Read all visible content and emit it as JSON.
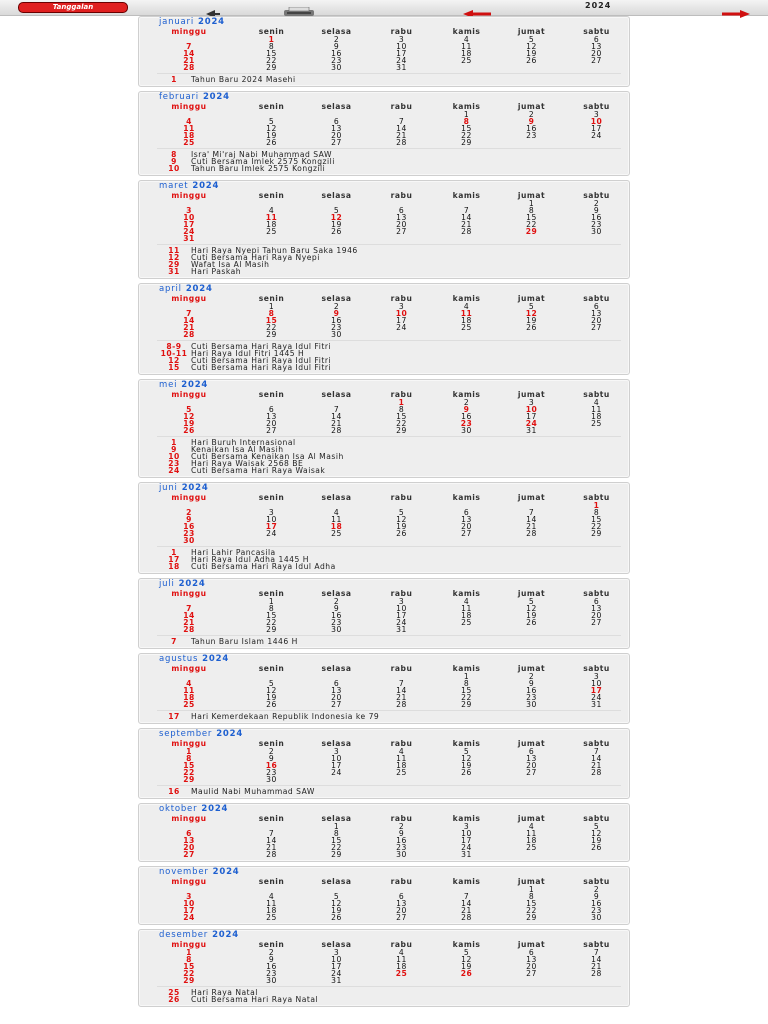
{
  "toolbar": {
    "logo_text": "Tanggalan",
    "year": "2024"
  },
  "calendar": {
    "year": "2024",
    "weekdays": [
      "minggu",
      "senin",
      "selasa",
      "rabu",
      "kamis",
      "jumat",
      "sabtu"
    ],
    "months": [
      {
        "name": "januari",
        "start": 1,
        "days": 31,
        "red": [
          1
        ],
        "holidays": [
          {
            "d": "1",
            "t": "Tahun Baru 2024 Masehi"
          }
        ]
      },
      {
        "name": "februari",
        "start": 4,
        "days": 29,
        "red": [
          8,
          9,
          10
        ],
        "holidays": [
          {
            "d": "8",
            "t": "Isra' Mi'raj Nabi Muhammad SAW"
          },
          {
            "d": "9",
            "t": "Cuti Bersama Imlek 2575 Kongzili"
          },
          {
            "d": "10",
            "t": "Tahun Baru Imlek 2575 Kongzili"
          }
        ]
      },
      {
        "name": "maret",
        "start": 5,
        "days": 31,
        "red": [
          11,
          12,
          29
        ],
        "holidays": [
          {
            "d": "11",
            "t": "Hari Raya Nyepi Tahun Baru Saka 1946"
          },
          {
            "d": "12",
            "t": "Cuti Bersama Hari Raya Nyepi"
          },
          {
            "d": "29",
            "t": "Wafat Isa Al Masih"
          },
          {
            "d": "31",
            "t": "Hari Paskah"
          }
        ]
      },
      {
        "name": "april",
        "start": 1,
        "days": 30,
        "red": [
          8,
          9,
          10,
          11,
          12,
          15
        ],
        "holidays": [
          {
            "d": "8-9",
            "t": "Cuti Bersama Hari Raya Idul Fitri"
          },
          {
            "d": "10-11",
            "t": "Hari Raya Idul Fitri 1445 H"
          },
          {
            "d": "12",
            "t": "Cuti Bersama Hari Raya Idul Fitri"
          },
          {
            "d": "15",
            "t": "Cuti Bersama Hari Raya Idul Fitri"
          }
        ]
      },
      {
        "name": "mei",
        "start": 3,
        "days": 31,
        "red": [
          1,
          9,
          10,
          23,
          24
        ],
        "holidays": [
          {
            "d": "1",
            "t": "Hari Buruh Internasional"
          },
          {
            "d": "9",
            "t": "Kenaikan Isa Al Masih"
          },
          {
            "d": "10",
            "t": "Cuti Bersama Kenaikan Isa Al Masih"
          },
          {
            "d": "23",
            "t": "Hari Raya Waisak 2568 BE"
          },
          {
            "d": "24",
            "t": "Cuti Bersama Hari Raya Waisak"
          }
        ]
      },
      {
        "name": "juni",
        "start": 6,
        "days": 30,
        "red": [
          1,
          17,
          18
        ],
        "holidays": [
          {
            "d": "1",
            "t": "Hari Lahir Pancasila"
          },
          {
            "d": "17",
            "t": "Hari Raya Idul Adha 1445 H"
          },
          {
            "d": "18",
            "t": "Cuti Bersama Hari Raya Idul Adha"
          }
        ]
      },
      {
        "name": "juli",
        "start": 1,
        "days": 31,
        "red": [
          7
        ],
        "holidays": [
          {
            "d": "7",
            "t": "Tahun Baru Islam 1446 H"
          }
        ]
      },
      {
        "name": "agustus",
        "start": 4,
        "days": 31,
        "red": [
          17
        ],
        "holidays": [
          {
            "d": "17",
            "t": "Hari Kemerdekaan Republik Indonesia ke 79"
          }
        ]
      },
      {
        "name": "september",
        "start": 0,
        "days": 30,
        "red": [
          16
        ],
        "holidays": [
          {
            "d": "16",
            "t": "Maulid Nabi Muhammad SAW"
          }
        ]
      },
      {
        "name": "oktober",
        "start": 2,
        "days": 31,
        "red": [],
        "holidays": []
      },
      {
        "name": "november",
        "start": 5,
        "days": 30,
        "red": [],
        "holidays": []
      },
      {
        "name": "desember",
        "start": 0,
        "days": 31,
        "red": [
          25,
          26
        ],
        "holidays": [
          {
            "d": "25",
            "t": "Hari Raya Natal"
          },
          {
            "d": "26",
            "t": "Cuti Bersama Hari Raya Natal"
          }
        ]
      }
    ]
  },
  "colors": {
    "accent": "#1d5fd0",
    "holiday": "#e01010",
    "panel": "#eeeeee"
  },
  "icons": [
    "back-arrow-icon",
    "print-icon",
    "prev-arrow-icon",
    "next-arrow-icon"
  ]
}
